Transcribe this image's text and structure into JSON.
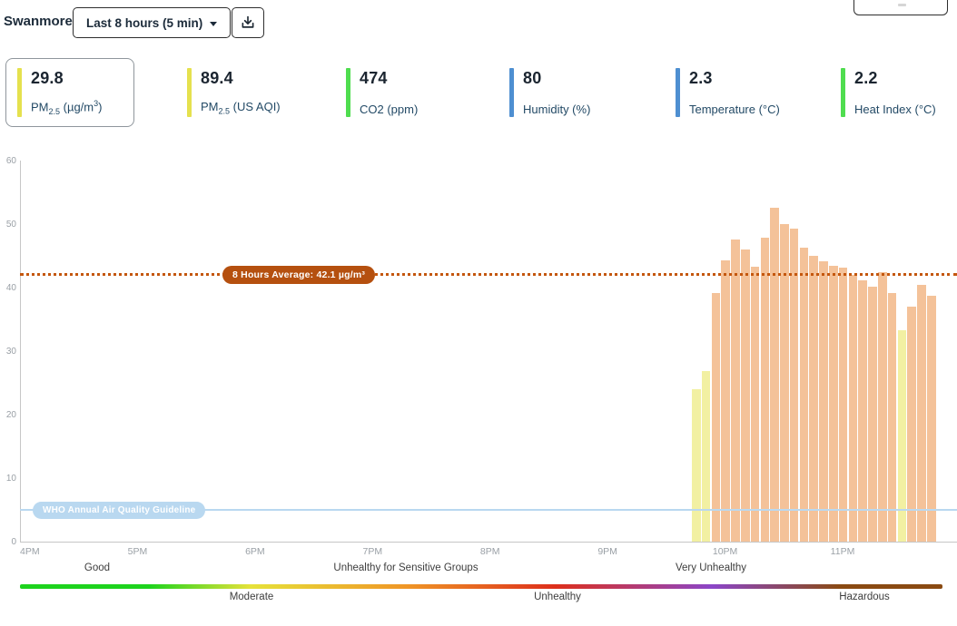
{
  "header": {
    "station_name": "Swanmore",
    "time_range_button": "Last 8 hours (5 min)"
  },
  "cards": [
    {
      "value": "29.8",
      "label_parts": [
        {
          "t": "PM"
        },
        {
          "sub": "2.5"
        },
        {
          "t": " (µg/m"
        },
        {
          "sup": "3"
        },
        {
          "t": ")"
        }
      ],
      "accent": "#e5e14e",
      "selected": true
    },
    {
      "value": "89.4",
      "label_parts": [
        {
          "t": "PM"
        },
        {
          "sub": "2.5"
        },
        {
          "t": " (US AQI)"
        }
      ],
      "accent": "#e5e14e",
      "selected": false
    },
    {
      "value": "474",
      "label_parts": [
        {
          "t": "CO2 (ppm)"
        }
      ],
      "accent": "#4fdd4f",
      "selected": false
    },
    {
      "value": "80",
      "label_parts": [
        {
          "t": "Humidity (%)"
        }
      ],
      "accent": "#4e8fd1",
      "selected": false
    },
    {
      "value": "2.3",
      "label_parts": [
        {
          "t": "Temperature (°C)"
        }
      ],
      "accent": "#4e8fd1",
      "selected": false
    },
    {
      "value": "2.2",
      "label_parts": [
        {
          "t": "Heat Index (°C)"
        }
      ],
      "accent": "#4fdd4f",
      "selected": false
    }
  ],
  "chart_data": {
    "type": "bar",
    "title": "",
    "ylabel": "PM2.5 (µg/m³)",
    "ylim": [
      0,
      60
    ],
    "yticks": [
      0,
      10,
      20,
      30,
      40,
      50,
      60
    ],
    "xticks": [
      "4PM",
      "5PM",
      "6PM",
      "7PM",
      "8PM",
      "9PM",
      "10PM",
      "11PM"
    ],
    "grid": false,
    "bar_interval_minutes": 5,
    "values": [
      24.0,
      26.9,
      39.1,
      44.3,
      47.6,
      46.0,
      43.3,
      47.8,
      52.6,
      50.0,
      49.3,
      46.3,
      45.0,
      44.2,
      43.5,
      43.2,
      42.0,
      41.1,
      40.1,
      42.4,
      39.2,
      33.3,
      37.0,
      40.5,
      38.7
    ],
    "bar_levels": [
      "yellow",
      "yellow",
      "orange",
      "orange",
      "orange",
      "orange",
      "orange",
      "orange",
      "orange",
      "orange",
      "orange",
      "orange",
      "orange",
      "orange",
      "orange",
      "orange",
      "orange",
      "orange",
      "orange",
      "orange",
      "orange",
      "yellow",
      "orange",
      "orange",
      "orange"
    ],
    "level_colors": {
      "yellow": "#f2f0a2",
      "orange": "#f4c299"
    },
    "average_line": {
      "value": 42.1,
      "label": "8 Hours Average: 42.1 µg/m³",
      "color": "#b5500f"
    },
    "who_line": {
      "value": 5,
      "label": "WHO Annual Air Quality Guideline",
      "color": "#b9d8f0"
    }
  },
  "aqi_scale": {
    "top_labels": [
      {
        "text": "Good",
        "x": 107
      },
      {
        "text": "Unhealthy for Sensitive Groups",
        "x": 447
      },
      {
        "text": "Very Unhealthy",
        "x": 783
      }
    ],
    "bottom_labels": [
      {
        "text": "Moderate",
        "x": 277
      },
      {
        "text": "Unhealthy",
        "x": 614
      },
      {
        "text": "Hazardous",
        "x": 952
      }
    ],
    "colors": [
      "#1dd31d",
      "#e6e23a",
      "#ef9526",
      "#dd2f1b",
      "#8b46c8",
      "#8a4a12"
    ]
  }
}
